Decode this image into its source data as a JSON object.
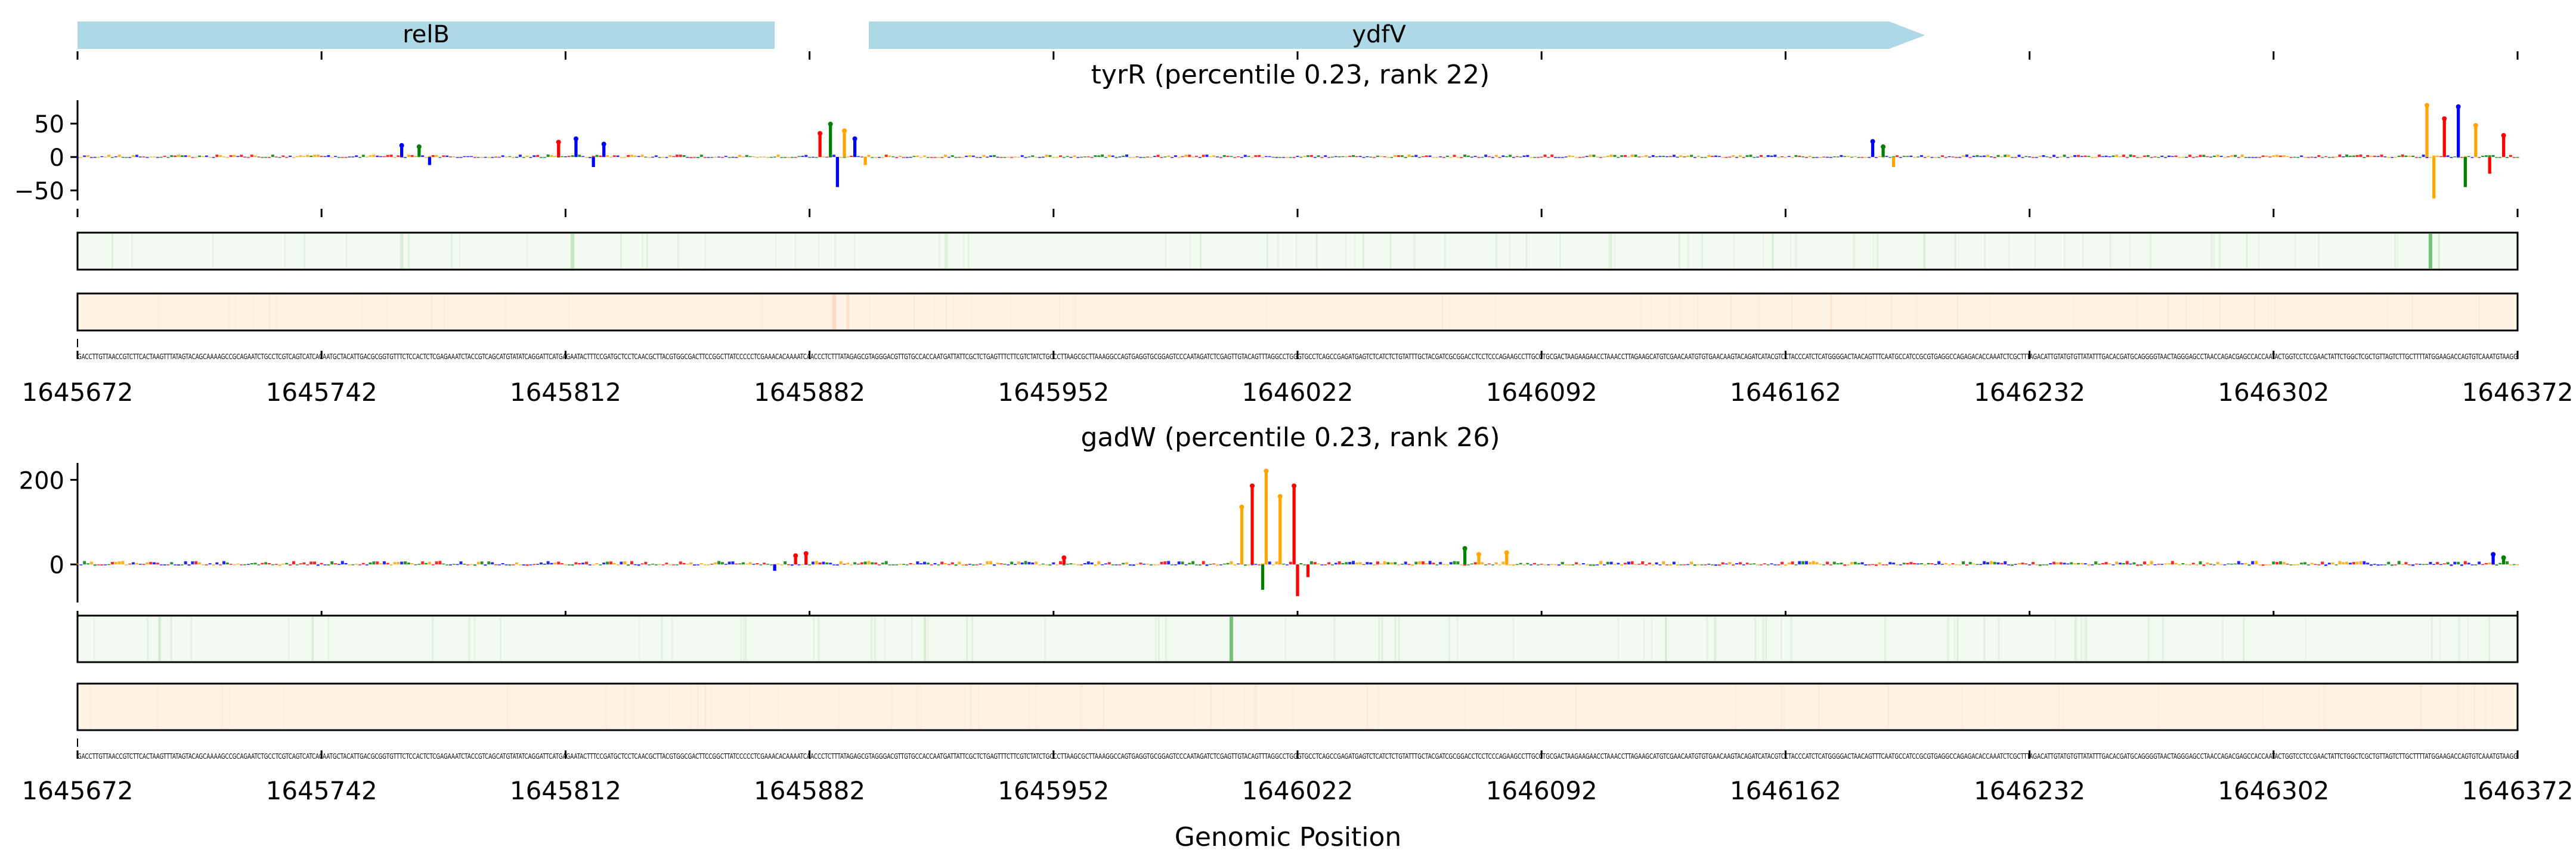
{
  "colors": {
    "gene": "#add8e6",
    "A": "#008000",
    "C": "#0000ff",
    "G": "#ffa500",
    "T": "#ff0000",
    "track_green": "#4caf50",
    "track_green_bg": "#f3faf1",
    "track_orange": "#f4a261",
    "track_orange_bg": "#fff3e6"
  },
  "chart_data": {
    "type": "sequence-logo",
    "xlim": [
      1645672,
      1646372
    ],
    "xticks": [
      "1645672",
      "1645742",
      "1645812",
      "1645882",
      "1645952",
      "1646022",
      "1646092",
      "1646162",
      "1646232",
      "1646302",
      "1646372"
    ],
    "xlabel": "Genomic Position",
    "genes": [
      {
        "name": "relB",
        "start": 1645672,
        "end": 1645872,
        "strand": "+"
      },
      {
        "name": "ydfV",
        "start": 1645899,
        "end": 1646202,
        "strand": "+"
      }
    ],
    "panels": [
      {
        "title": "tyrR (percentile 0.23, rank 22)",
        "ylim": [
          -65,
          85
        ],
        "yticks": [
          -50,
          0,
          50
        ],
        "ytick_labels": [
          "−50",
          "0",
          "50"
        ],
        "peaks": [
          {
            "pos": 1645765,
            "value": 20
          },
          {
            "pos": 1645770,
            "value": 18
          },
          {
            "pos": 1645773,
            "value": -12
          },
          {
            "pos": 1645810,
            "value": 25
          },
          {
            "pos": 1645815,
            "value": 30
          },
          {
            "pos": 1645820,
            "value": -15
          },
          {
            "pos": 1645823,
            "value": 22
          },
          {
            "pos": 1645885,
            "value": 38
          },
          {
            "pos": 1645888,
            "value": 52
          },
          {
            "pos": 1645892,
            "value": 42
          },
          {
            "pos": 1645895,
            "value": 30
          },
          {
            "pos": 1645890,
            "value": -45
          },
          {
            "pos": 1645898,
            "value": -12
          },
          {
            "pos": 1646187,
            "value": 26
          },
          {
            "pos": 1646190,
            "value": 18
          },
          {
            "pos": 1646193,
            "value": -15
          },
          {
            "pos": 1646346,
            "value": 80
          },
          {
            "pos": 1646351,
            "value": 60
          },
          {
            "pos": 1646355,
            "value": 78
          },
          {
            "pos": 1646360,
            "value": 50
          },
          {
            "pos": 1646348,
            "value": -62
          },
          {
            "pos": 1646357,
            "value": -45
          },
          {
            "pos": 1646368,
            "value": 35
          },
          {
            "pos": 1646364,
            "value": -25
          }
        ],
        "heat_green": [
          {
            "pos": 1646347,
            "strength": 1.0
          },
          {
            "pos": 1645814,
            "strength": 0.35
          },
          {
            "pos": 1645765,
            "strength": 0.2
          }
        ],
        "heat_orange": [
          {
            "pos": 1645889,
            "strength": 0.45
          },
          {
            "pos": 1645893,
            "strength": 0.35
          }
        ]
      },
      {
        "title": "gadW (percentile 0.23, rank 26)",
        "ylim": [
          -90,
          240
        ],
        "yticks": [
          0,
          200
        ],
        "ytick_labels": [
          "0",
          "200"
        ],
        "peaks": [
          {
            "pos": 1646006,
            "value": 140
          },
          {
            "pos": 1646009,
            "value": 190
          },
          {
            "pos": 1646013,
            "value": 225
          },
          {
            "pos": 1646017,
            "value": 165
          },
          {
            "pos": 1646021,
            "value": 190
          },
          {
            "pos": 1646012,
            "value": -60
          },
          {
            "pos": 1646022,
            "value": -75
          },
          {
            "pos": 1646025,
            "value": -30
          },
          {
            "pos": 1645878,
            "value": 25
          },
          {
            "pos": 1645881,
            "value": 30
          },
          {
            "pos": 1645872,
            "value": -15
          },
          {
            "pos": 1645955,
            "value": 20
          },
          {
            "pos": 1646070,
            "value": 42
          },
          {
            "pos": 1646074,
            "value": 28
          },
          {
            "pos": 1646082,
            "value": 32
          },
          {
            "pos": 1646365,
            "value": 28
          },
          {
            "pos": 1646368,
            "value": 20
          }
        ],
        "heat_green": [
          {
            "pos": 1646003,
            "strength": 1.0
          }
        ],
        "heat_orange": [
          {
            "pos": 1645960,
            "strength": 0.15
          },
          {
            "pos": 1646010,
            "strength": 0.15
          }
        ]
      }
    ]
  }
}
